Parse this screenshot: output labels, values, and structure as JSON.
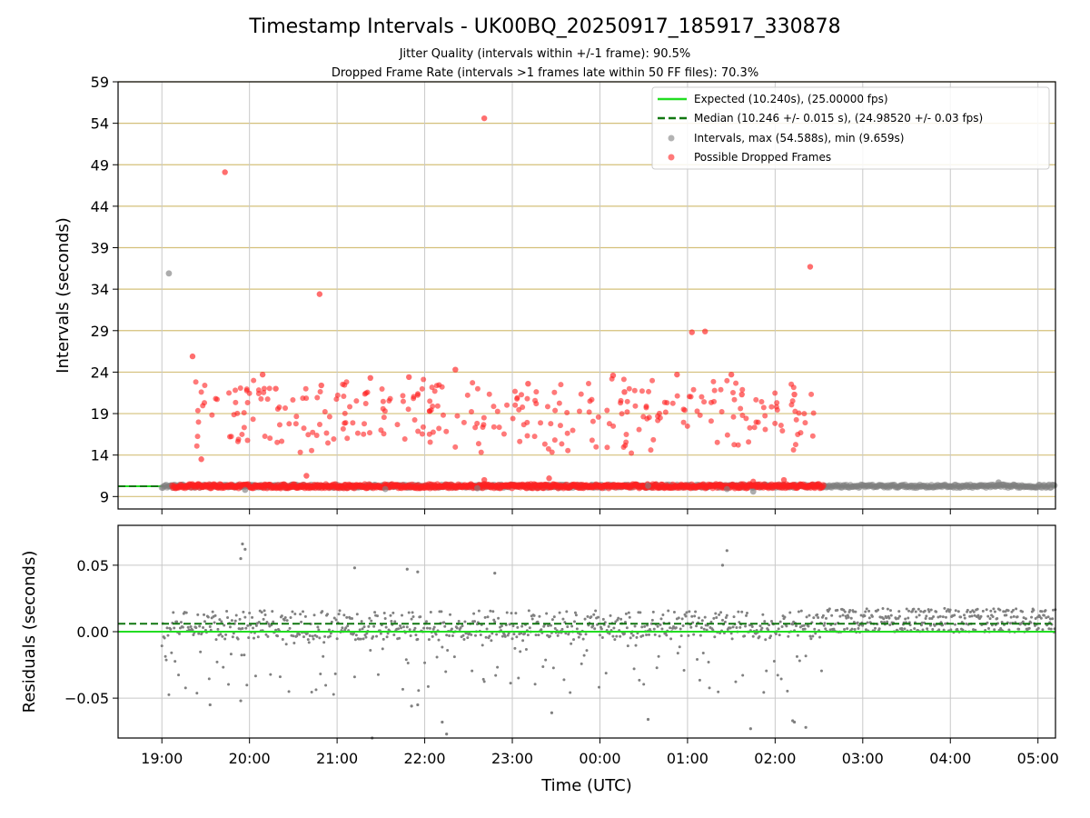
{
  "chart_data": [
    {
      "type": "scatter",
      "title": "Timestamp Intervals - UK00BQ_20250917_185917_330878",
      "subtitle_1": "Jitter Quality (intervals within +/-1 frame): 90.5%",
      "subtitle_2": "Dropped Frame Rate (intervals >1 frames late within 50 FF files): 70.3%",
      "ylabel": "Intervals (seconds)",
      "ylim": [
        7.5,
        59
      ],
      "yticks": [
        "9",
        "14",
        "19",
        "24",
        "29",
        "34",
        "39",
        "44",
        "49",
        "54",
        "59"
      ],
      "ytick_values": [
        9,
        14,
        19,
        24,
        29,
        34,
        39,
        44,
        49,
        54,
        59
      ],
      "xlim_hours": [
        18.5,
        29.2
      ],
      "expected_interval": 10.24,
      "median_interval": 10.246,
      "legend_position": "top-right",
      "legend": [
        "Expected (10.240s), (25.00000 fps)",
        "Median (10.246 +/- 0.015 s), (24.98520 +/- 0.03 fps)",
        "Intervals, max (54.588s), min (9.659s)",
        "Possible Dropped Frames"
      ],
      "colors": {
        "expected": "#22dd22",
        "median": "#117711",
        "intervals": "#808080",
        "dropped": "#ff2020",
        "ygrid": "#d4c07a",
        "xgrid": "#c8c8c8"
      },
      "series": [
        {
          "name": "Intervals (gray, notable)",
          "points": [
            [
              19.08,
              35.9
            ],
            [
              19.95,
              9.8
            ],
            [
              21.55,
              9.9
            ],
            [
              22.6,
              10.0
            ],
            [
              24.55,
              10.3
            ],
            [
              25.45,
              9.9
            ],
            [
              25.75,
              9.6
            ],
            [
              28.55,
              10.7
            ]
          ]
        },
        {
          "name": "Possible Dropped Frames (notable)",
          "points": [
            [
              19.35,
              25.9
            ],
            [
              19.72,
              48.1
            ],
            [
              20.8,
              33.4
            ],
            [
              22.68,
              54.6
            ],
            [
              25.05,
              28.8
            ],
            [
              25.2,
              28.9
            ],
            [
              26.4,
              36.7
            ],
            [
              20.15,
              23.7
            ],
            [
              21.38,
              23.3
            ],
            [
              21.82,
              23.4
            ],
            [
              22.35,
              24.3
            ],
            [
              23.18,
              22.6
            ],
            [
              24.15,
              23.6
            ],
            [
              24.88,
              23.7
            ],
            [
              25.5,
              23.7
            ],
            [
              20.65,
              11.5
            ],
            [
              22.68,
              11.0
            ],
            [
              23.42,
              11.2
            ],
            [
              25.75,
              10.8
            ],
            [
              26.1,
              11.0
            ],
            [
              19.45,
              13.5
            ],
            [
              20.82,
              22.4
            ],
            [
              20.3,
              22.0
            ],
            [
              24.28,
              21.6
            ],
            [
              25.62,
              21.3
            ],
            [
              26.22,
              21.3
            ]
          ]
        }
      ]
    },
    {
      "type": "scatter",
      "ylabel": "Residuals (seconds)",
      "xlabel": "Time (UTC)",
      "ylim": [
        -0.08,
        0.08
      ],
      "yticks": [
        "0.05",
        "0.00",
        "−0.05"
      ],
      "ytick_values": [
        0.05,
        0.0,
        -0.05
      ],
      "xticks": [
        "19:00",
        "20:00",
        "21:00",
        "22:00",
        "23:00",
        "00:00",
        "01:00",
        "02:00",
        "03:00",
        "04:00",
        "05:00"
      ],
      "xtick_values": [
        19,
        20,
        21,
        22,
        23,
        24,
        25,
        26,
        27,
        28,
        29
      ],
      "xlim_hours": [
        18.5,
        29.2
      ],
      "expected_residual": 0.0,
      "median_residual": 0.006,
      "residuals_notable": [
        [
          19.92,
          0.066
        ],
        [
          19.95,
          0.062
        ],
        [
          25.45,
          0.061
        ],
        [
          19.9,
          0.055
        ],
        [
          25.4,
          0.05
        ],
        [
          21.2,
          0.048
        ],
        [
          21.8,
          0.047
        ],
        [
          21.92,
          0.045
        ],
        [
          22.8,
          0.044
        ],
        [
          19.55,
          -0.055
        ],
        [
          19.9,
          -0.052
        ],
        [
          21.4,
          -0.08
        ],
        [
          22.25,
          -0.077
        ],
        [
          22.2,
          -0.068
        ],
        [
          24.55,
          -0.066
        ],
        [
          25.72,
          -0.073
        ],
        [
          26.22,
          -0.068
        ],
        [
          26.35,
          -0.072
        ],
        [
          26.2,
          -0.067
        ],
        [
          23.45,
          -0.061
        ],
        [
          21.85,
          -0.056
        ],
        [
          21.92,
          -0.055
        ]
      ]
    }
  ]
}
